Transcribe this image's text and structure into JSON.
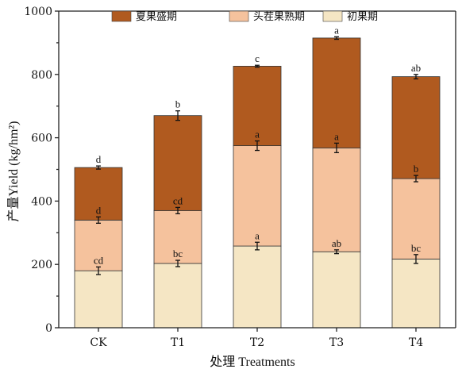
{
  "chart_data": {
    "type": "bar",
    "stacked": true,
    "categories": [
      "CK",
      "T1",
      "T2",
      "T3",
      "T4"
    ],
    "xlabel": "处理 Treatments",
    "ylabel": "产量Yield (kg/hm²)",
    "ylim": [
      0,
      1000
    ],
    "yticks": [
      0,
      200,
      400,
      600,
      800,
      1000
    ],
    "legend_position": "top",
    "series": [
      {
        "name": "初果期",
        "color": "#f5e6c4",
        "values": [
          180,
          203,
          258,
          240,
          217
        ],
        "errors": [
          12,
          10,
          12,
          6,
          14
        ],
        "letters": [
          "cd",
          "bc",
          "a",
          "ab",
          "bc"
        ]
      },
      {
        "name": "头茬果熟期",
        "color": "#f5c29d",
        "values": [
          160,
          167,
          317,
          328,
          254
        ],
        "errors": [
          10,
          10,
          15,
          15,
          10
        ],
        "letters": [
          "d",
          "cd",
          "a",
          "a",
          "b"
        ]
      },
      {
        "name": "夏果盛期",
        "color": "#b05a1f",
        "values": [
          166,
          300,
          251,
          347,
          322
        ],
        "errors": [
          5,
          15,
          3,
          4,
          7
        ],
        "letters": [
          "d",
          "b",
          "c",
          "a",
          "ab"
        ]
      }
    ],
    "legend_order": [
      2,
      1,
      0
    ]
  }
}
